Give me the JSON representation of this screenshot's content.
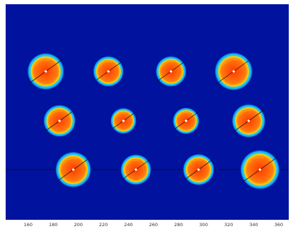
{
  "colors": {
    "background": "#ffffff",
    "field": "#00129e",
    "halo": "#19c8ff",
    "rim": "#ffd200",
    "spot_core": "#ff3a00",
    "spot_edge": "#ff7a10",
    "center_marker": "#ffffff",
    "guide_line": "#1a0a00"
  },
  "x_axis": {
    "range": [
      142,
      368
    ],
    "ticks": [
      160,
      180,
      200,
      220,
      240,
      260,
      280,
      300,
      320,
      340,
      360
    ],
    "labels": [
      "160",
      "180",
      "200",
      "220",
      "240",
      "260",
      "280",
      "300",
      "320",
      "340",
      "360"
    ]
  },
  "spots": [
    {
      "row": 1,
      "x": 174,
      "size": 1.0
    },
    {
      "row": 1,
      "x": 224,
      "size": 0.83
    },
    {
      "row": 1,
      "x": 274,
      "size": 0.83
    },
    {
      "row": 1,
      "x": 324,
      "size": 1.03
    },
    {
      "row": 2,
      "x": 185,
      "size": 0.87
    },
    {
      "row": 2,
      "x": 236,
      "size": 0.7
    },
    {
      "row": 2,
      "x": 286,
      "size": 0.72
    },
    {
      "row": 2,
      "x": 336,
      "size": 0.91
    },
    {
      "row": 3,
      "x": 196,
      "size": 0.97
    },
    {
      "row": 3,
      "x": 246,
      "size": 0.83
    },
    {
      "row": 3,
      "x": 296,
      "size": 0.85
    },
    {
      "row": 3,
      "x": 345,
      "size": 1.07
    }
  ]
}
